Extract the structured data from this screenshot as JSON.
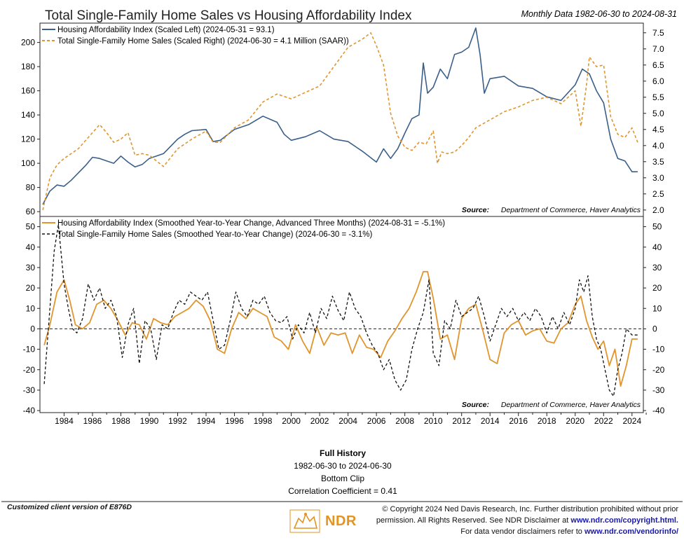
{
  "header": {
    "title": "Total Single-Family Home Sales vs Housing Affordability Index",
    "date_range": "Monthly Data 1982-06-30 to 2024-08-31"
  },
  "colors": {
    "blue": "#3a5f8a",
    "orange": "#e0952e",
    "dark": "#111111"
  },
  "chart_data": [
    {
      "type": "line",
      "panel": "top",
      "legend": [
        "Housing Affordability Index (Scaled Left) (2024-05-31 = 93.1)",
        "Total Single-Family Home Sales (Scaled Right) (2024-06-30 = 4.1 Million (SAAR))"
      ],
      "source": "Source:",
      "source_text": "Department of Commerce, Haver Analytics",
      "left_axis": {
        "ticks": [
          60,
          80,
          100,
          120,
          140,
          160,
          180,
          200
        ],
        "range": [
          56,
          216
        ]
      },
      "right_axis": {
        "ticks": [
          2.0,
          2.5,
          3.0,
          3.5,
          4.0,
          4.5,
          5.0,
          5.5,
          6.0,
          6.5,
          7.0,
          7.5
        ],
        "range": [
          1.8,
          7.8
        ]
      },
      "series": [
        {
          "name": "Housing Affordability Index (Scaled Left)",
          "axis": "left",
          "style": "solid",
          "x": [
            1982.5,
            1983,
            1983.5,
            1984,
            1984.5,
            1985,
            1985.5,
            1986,
            1986.5,
            1987,
            1987.5,
            1988,
            1988.5,
            1989,
            1989.5,
            1990,
            1991,
            1992,
            1992.5,
            1993,
            1994,
            1994.5,
            1995,
            1996,
            1997,
            1998,
            1999,
            1999.5,
            2000,
            2001,
            2002,
            2003,
            2004,
            2005,
            2006,
            2006.5,
            2007,
            2007.5,
            2008,
            2008.5,
            2009,
            2009.3,
            2009.6,
            2010,
            2010.5,
            2011,
            2011.5,
            2012,
            2012.5,
            2013,
            2013.3,
            2013.6,
            2014,
            2015,
            2016,
            2017,
            2018,
            2019,
            2020,
            2020.5,
            2021,
            2021.5,
            2022,
            2022.5,
            2023,
            2023.5,
            2024,
            2024.4
          ],
          "values": [
            66,
            77,
            82,
            81,
            86,
            92,
            98,
            105,
            104,
            102,
            100,
            106,
            101,
            97,
            99,
            104,
            108,
            120,
            124,
            127,
            128,
            118,
            119,
            128,
            132,
            139,
            134,
            124,
            119,
            122,
            127,
            120,
            118,
            110,
            101,
            112,
            104,
            112,
            125,
            137,
            140,
            183,
            158,
            163,
            178,
            170,
            190,
            192,
            196,
            212,
            190,
            158,
            170,
            172,
            164,
            162,
            155,
            152,
            165,
            178,
            174,
            160,
            150,
            120,
            104,
            102,
            93,
            93
          ]
        },
        {
          "name": "Total Single-Family Home Sales (Scaled Right)",
          "axis": "right",
          "style": "dashed",
          "x": [
            1982.5,
            1983,
            1983.5,
            1984,
            1984.5,
            1985,
            1985.5,
            1986,
            1986.5,
            1987,
            1987.5,
            1988,
            1988.5,
            1989,
            1989.5,
            1990,
            1991,
            1992,
            1992.5,
            1993,
            1994,
            1994.5,
            1995,
            1996,
            1997,
            1998,
            1999,
            2000,
            2001,
            2002,
            2003,
            2004,
            2005,
            2005.6,
            2006,
            2006.5,
            2007,
            2007.5,
            2008,
            2008.5,
            2009,
            2009.5,
            2010,
            2010.3,
            2010.6,
            2011,
            2011.5,
            2012,
            2012.5,
            2013,
            2014,
            2015,
            2016,
            2017,
            2018,
            2019,
            2020,
            2020.4,
            2020.8,
            2021,
            2021.5,
            2022,
            2022.5,
            2023,
            2023.5,
            2024,
            2024.4
          ],
          "values": [
            2.0,
            3.0,
            3.4,
            3.6,
            3.75,
            3.9,
            4.15,
            4.4,
            4.65,
            4.4,
            4.1,
            4.2,
            4.4,
            3.7,
            3.75,
            3.7,
            3.35,
            3.9,
            4.05,
            4.2,
            4.45,
            4.1,
            4.1,
            4.55,
            4.8,
            5.35,
            5.6,
            5.45,
            5.65,
            5.85,
            6.45,
            7.05,
            7.3,
            7.5,
            7.1,
            6.5,
            5.0,
            4.3,
            3.95,
            3.85,
            4.1,
            4.05,
            4.45,
            3.45,
            3.8,
            3.75,
            3.8,
            4.0,
            4.25,
            4.55,
            4.8,
            5.05,
            5.2,
            5.4,
            5.5,
            5.3,
            5.7,
            4.6,
            5.9,
            6.75,
            6.45,
            6.5,
            4.9,
            4.35,
            4.25,
            4.55,
            4.1
          ]
        }
      ]
    },
    {
      "type": "line",
      "panel": "bottom",
      "legend": [
        "Housing Affordability Index (Smoothed Year-to-Year Change, Advanced Three Months) (2024-08-31 = -5.1%)",
        "Total Single-Family Home Sales (Smoothed Year-to-Year Change) (2024-06-30 = -3.1%)"
      ],
      "source": "Source:",
      "source_text": "Department of Commerce, Haver Analytics",
      "y_axis": {
        "ticks": [
          -40,
          -30,
          -20,
          -10,
          0,
          10,
          20,
          30,
          40,
          50
        ],
        "range": [
          -41,
          55
        ]
      },
      "x_axis": {
        "ticks": [
          "1984",
          "1986",
          "1988",
          "1990",
          "1992",
          "1994",
          "1996",
          "1998",
          "2000",
          "2002",
          "2004",
          "2006",
          "2008",
          "2010",
          "2012",
          "2014",
          "2016",
          "2018",
          "2020",
          "2022",
          "2024"
        ],
        "range": [
          1982.3,
          2024.8
        ]
      },
      "series": [
        {
          "name": "Housing Affordability Index (Smoothed Year-to-Year Change, Advanced Three Months)",
          "style": "solid",
          "x": [
            1982.6,
            1983,
            1983.5,
            1984,
            1984.4,
            1984.8,
            1985.3,
            1985.8,
            1986.3,
            1986.8,
            1987.3,
            1987.8,
            1988.3,
            1988.8,
            1989.3,
            1989.8,
            1990.3,
            1990.8,
            1991.3,
            1991.8,
            1992.3,
            1992.8,
            1993.3,
            1993.8,
            1994.3,
            1994.8,
            1995.3,
            1995.8,
            1996.3,
            1996.8,
            1997.3,
            1997.8,
            1998.3,
            1998.8,
            1999.3,
            1999.8,
            2000.3,
            2000.8,
            2001.3,
            2001.8,
            2002.3,
            2002.8,
            2003.3,
            2003.8,
            2004.3,
            2004.8,
            2005.3,
            2005.8,
            2006.3,
            2006.8,
            2007.3,
            2007.8,
            2008.3,
            2008.8,
            2009.3,
            2009.6,
            2010,
            2010.5,
            2011,
            2011.5,
            2012,
            2012.5,
            2013,
            2013.5,
            2014,
            2014.5,
            2015,
            2015.5,
            2016,
            2016.5,
            2017,
            2017.5,
            2018,
            2018.5,
            2019,
            2019.5,
            2020,
            2020.4,
            2020.8,
            2021.2,
            2021.6,
            2022,
            2022.4,
            2022.8,
            2023.2,
            2023.6,
            2024,
            2024.4
          ],
          "values": [
            -8,
            2,
            18,
            24,
            14,
            2,
            0,
            3,
            12,
            14,
            10,
            4,
            -3,
            3,
            2,
            -5,
            5,
            3,
            2,
            6,
            8,
            10,
            14,
            11,
            4,
            -10,
            -12,
            0,
            8,
            5,
            10,
            8,
            6,
            -4,
            -6,
            -10,
            2,
            -6,
            -12,
            1,
            -8,
            -2,
            -3,
            -2,
            -12,
            -3,
            -9,
            -10,
            -14,
            -6,
            -1,
            5,
            10,
            18,
            28,
            28,
            15,
            -5,
            -3,
            -15,
            5,
            10,
            12,
            -1,
            -15,
            -17,
            -2,
            2,
            4,
            -3,
            -1,
            0,
            -6,
            -7,
            0,
            3,
            12,
            16,
            4,
            -4,
            -10,
            -6,
            -18,
            -10,
            -28,
            -18,
            -5,
            -5
          ]
        },
        {
          "name": "Total Single-Family Home Sales (Smoothed Year-to-Year Change)",
          "style": "dashed",
          "x": [
            1982.6,
            1983,
            1983.3,
            1983.6,
            1984,
            1984.3,
            1984.6,
            1984.9,
            1985.3,
            1985.7,
            1986.1,
            1986.5,
            1986.9,
            1987.3,
            1987.7,
            1988.1,
            1988.5,
            1988.9,
            1989.3,
            1989.7,
            1990.1,
            1990.5,
            1990.9,
            1991.3,
            1991.7,
            1992.1,
            1992.5,
            1992.9,
            1993.3,
            1993.7,
            1994.1,
            1994.5,
            1994.9,
            1995.3,
            1995.7,
            1996.1,
            1996.5,
            1996.9,
            1997.3,
            1997.7,
            1998.1,
            1998.5,
            1998.9,
            1999.3,
            1999.7,
            2000.1,
            2000.5,
            2000.9,
            2001.3,
            2001.7,
            2002.1,
            2002.5,
            2002.9,
            2003.3,
            2003.7,
            2004.1,
            2004.5,
            2004.9,
            2005.3,
            2005.7,
            2006.1,
            2006.5,
            2006.9,
            2007.3,
            2007.7,
            2008.1,
            2008.5,
            2008.9,
            2009.3,
            2009.7,
            2010,
            2010.4,
            2010.8,
            2011.2,
            2011.6,
            2012,
            2012.4,
            2012.8,
            2013.2,
            2013.6,
            2014,
            2014.4,
            2014.8,
            2015.2,
            2015.6,
            2016,
            2016.4,
            2016.8,
            2017.2,
            2017.6,
            2018,
            2018.4,
            2018.8,
            2019.2,
            2019.6,
            2020,
            2020.3,
            2020.6,
            2020.9,
            2021.2,
            2021.5,
            2021.8,
            2022.1,
            2022.4,
            2022.7,
            2023,
            2023.3,
            2023.6,
            2024,
            2024.4
          ],
          "values": [
            -27,
            10,
            38,
            51,
            22,
            10,
            0,
            -2,
            5,
            22,
            14,
            20,
            10,
            14,
            6,
            -14,
            2,
            10,
            -17,
            4,
            0,
            -15,
            2,
            0,
            8,
            14,
            12,
            18,
            16,
            14,
            18,
            4,
            -10,
            -8,
            4,
            18,
            10,
            6,
            14,
            12,
            16,
            8,
            4,
            3,
            6,
            -5,
            2,
            -2,
            8,
            -2,
            10,
            5,
            16,
            9,
            4,
            18,
            10,
            6,
            -2,
            -8,
            -12,
            -20,
            -15,
            -25,
            -30,
            -25,
            -10,
            0,
            8,
            24,
            -12,
            -18,
            4,
            0,
            14,
            6,
            8,
            10,
            16,
            6,
            -6,
            2,
            10,
            6,
            10,
            4,
            8,
            4,
            10,
            6,
            -2,
            6,
            0,
            8,
            2,
            10,
            24,
            18,
            26,
            6,
            -5,
            -10,
            -20,
            -30,
            -33,
            -20,
            -12,
            0,
            -3,
            -3
          ]
        }
      ]
    }
  ],
  "stats": {
    "heading": "Full History",
    "range": "1982-06-30 to 2024-06-30",
    "clip": "Bottom Clip",
    "correlation": "Correlation Coefficient = 0.41"
  },
  "footer": {
    "client": "Customized client version of E876D",
    "copyright_line1": "© Copyright 2024 Ned Davis Research, Inc. Further distribution prohibited without prior",
    "copyright_line2a": "permission. All Rights Reserved. See NDR Disclaimer at",
    "copyright_link1": "www.ndr.com/copyright.html.",
    "copyright_line3a": "For data vendor disclaimers refer to",
    "copyright_link2": "www.ndr.com/vendorinfo/",
    "logo_text": "NDR"
  }
}
